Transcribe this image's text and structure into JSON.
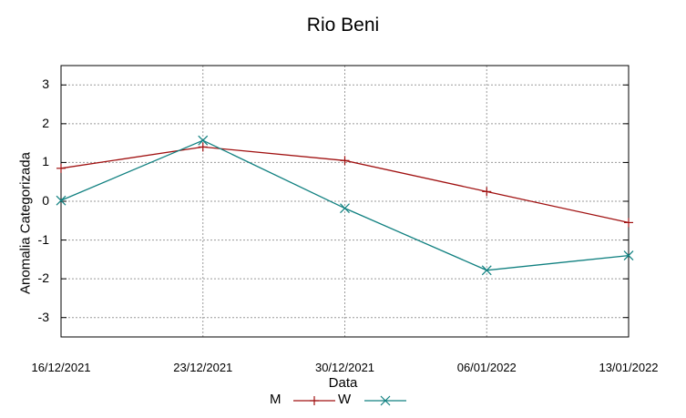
{
  "chart_data": {
    "type": "line",
    "title": "Rio Beni",
    "xlabel": "Data",
    "ylabel": "Anomalia Categorizada",
    "categories": [
      "16/12/2021",
      "23/12/2021",
      "30/12/2021",
      "06/01/2022",
      "13/01/2022"
    ],
    "ylim": [
      -3.5,
      3.5
    ],
    "yticks": [
      3,
      2,
      1,
      0,
      -1,
      -2,
      -3
    ],
    "ytick_labels": [
      "3",
      "2",
      "1",
      "0",
      "-1",
      "-2",
      "-3"
    ],
    "grid": true,
    "legend_position": "bottom",
    "series": [
      {
        "name": "M",
        "marker": "plus",
        "color": "#a01010",
        "values": [
          0.85,
          1.4,
          1.05,
          0.25,
          -0.55
        ]
      },
      {
        "name": "W",
        "marker": "x",
        "color": "#108080",
        "values": [
          0.02,
          1.57,
          -0.18,
          -1.78,
          -1.4
        ]
      }
    ]
  }
}
